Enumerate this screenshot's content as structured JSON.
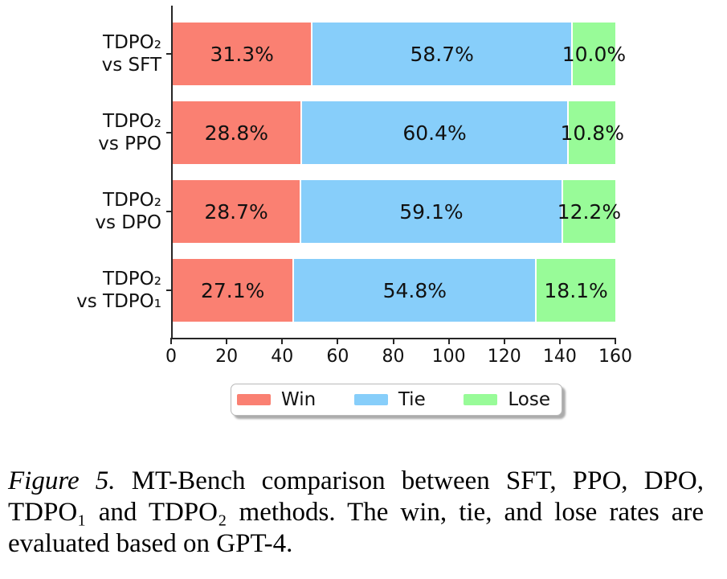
{
  "chart_data": {
    "type": "bar",
    "variant": "stacked-horizontal",
    "title": "",
    "xlabel": "",
    "ylabel": "",
    "grid": false,
    "categories": [
      {
        "line1": "TDPO₂",
        "line2": "vs SFT"
      },
      {
        "line1": "TDPO₂",
        "line2": "vs PPO"
      },
      {
        "line1": "TDPO₂",
        "line2": "vs DPO"
      },
      {
        "line1": "TDPO₂",
        "line2": "vs TDPO₁"
      }
    ],
    "series": [
      {
        "name": "Win",
        "color": "#fa8072",
        "values_percent": [
          31.3,
          28.8,
          28.7,
          27.1
        ],
        "bar_labels": [
          "31.3%",
          "28.8%",
          "28.7%",
          "27.1%"
        ]
      },
      {
        "name": "Tie",
        "color": "#87cefa",
        "values_percent": [
          58.7,
          60.4,
          59.1,
          54.8
        ],
        "bar_labels": [
          "58.7%",
          "60.4%",
          "59.1%",
          "54.8%"
        ]
      },
      {
        "name": "Lose",
        "color": "#98fb98",
        "values_percent": [
          10.0,
          10.8,
          12.2,
          18.1
        ],
        "bar_labels": [
          "10.0%",
          "10.8%",
          "12.2%",
          "18.1%"
        ]
      }
    ],
    "x_axis": {
      "min": 0,
      "max": 160,
      "tick_labels": [
        "0",
        "20",
        "40",
        "60",
        "80",
        "100",
        "120",
        "140",
        "160"
      ]
    },
    "legend": {
      "position": "lower center",
      "entries": [
        "Win",
        "Tie",
        "Lose"
      ]
    }
  },
  "caption": {
    "figure_label": "Figure 5.",
    "lines": [
      "MT-Bench comparison between SFT, PPO, DPO,",
      "TDPO₁ and TDPO₂ methods. The win, tie, and lose rates are",
      "evaluated based on GPT-4."
    ]
  }
}
